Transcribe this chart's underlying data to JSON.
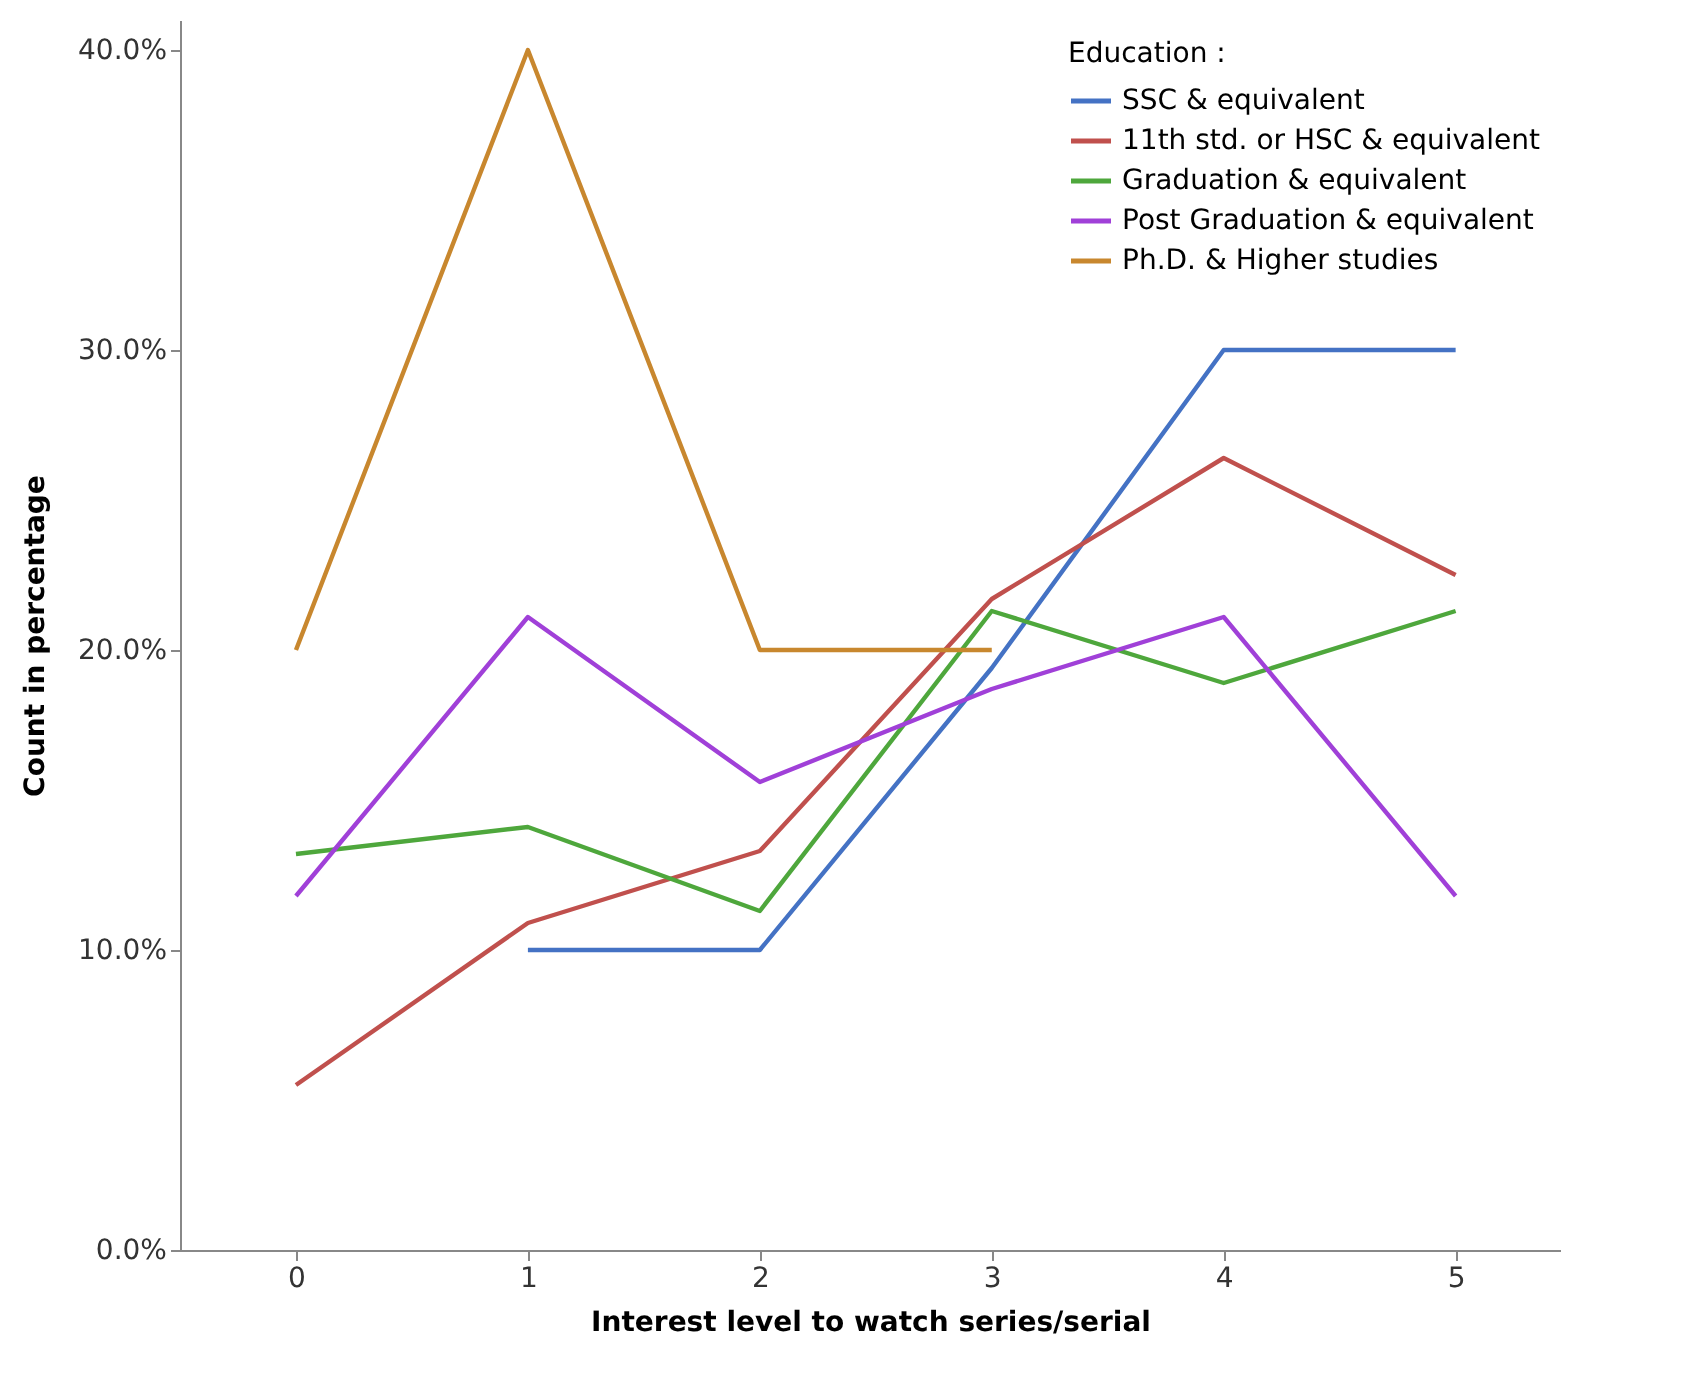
{
  "chart_data": {
    "type": "line",
    "xlabel": "Interest level to watch series/serial",
    "ylabel": "Count in percentage",
    "legend_title": "Education :",
    "x": [
      0,
      1,
      2,
      3,
      4,
      5
    ],
    "series": [
      {
        "name": "SSC & equivalent",
        "color": "#4472c4",
        "values": [
          null,
          10,
          10,
          19.4,
          30,
          30
        ]
      },
      {
        "name": "11th std. or HSC & equivalent",
        "color": "#c0504d",
        "values": [
          5.5,
          10.9,
          13.3,
          21.7,
          26.4,
          22.5
        ]
      },
      {
        "name": "Graduation & equivalent",
        "color": "#4ea73c",
        "values": [
          13.2,
          14.1,
          11.3,
          21.3,
          18.9,
          21.3
        ]
      },
      {
        "name": "Post Graduation & equivalent",
        "color": "#a040d8",
        "values": [
          11.8,
          21.1,
          15.6,
          18.7,
          21.1,
          11.8
        ]
      },
      {
        "name": "Ph.D. & Higher studies",
        "color": "#c8872e",
        "values": [
          20,
          40,
          20,
          20,
          null,
          null
        ]
      }
    ],
    "xlim": [
      -0.5,
      5.45
    ],
    "xticks": [
      0,
      1,
      2,
      3,
      4,
      5
    ],
    "ylim": [
      0,
      41
    ],
    "yticks": [
      {
        "value": 0,
        "label": "0.0%"
      },
      {
        "value": 10,
        "label": "10.0%"
      },
      {
        "value": 20,
        "label": "20.0%"
      },
      {
        "value": 30,
        "label": "30.0%"
      },
      {
        "value": 40,
        "label": "40.0%"
      }
    ],
    "grid": false,
    "legend": "top right",
    "marker": "none",
    "line_style": "solid"
  }
}
